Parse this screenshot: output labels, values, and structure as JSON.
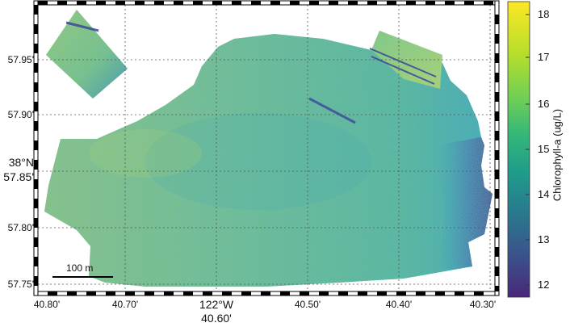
{
  "map": {
    "y_ticks": [
      "57.95'",
      "57.90'",
      "57.85'",
      "57.80'",
      "57.75'"
    ],
    "y_degree": "38°N",
    "x_ticks": [
      "40.80'",
      "40.70'",
      "40.50'",
      "40.40'",
      "40.30'"
    ],
    "x_degree": "122°W",
    "x_degree_minute": "40.60'",
    "scale_bar": "100 m"
  },
  "colorbar": {
    "title": "Chlorophyll-a (ug/L)",
    "ticks": [
      "18",
      "17",
      "16",
      "15",
      "14",
      "13",
      "12"
    ],
    "colormap": [
      "#fde725",
      "#b5de2b",
      "#6ece58",
      "#35b779",
      "#1f9e89",
      "#26828e",
      "#31688e",
      "#3e4989",
      "#482878"
    ]
  }
}
